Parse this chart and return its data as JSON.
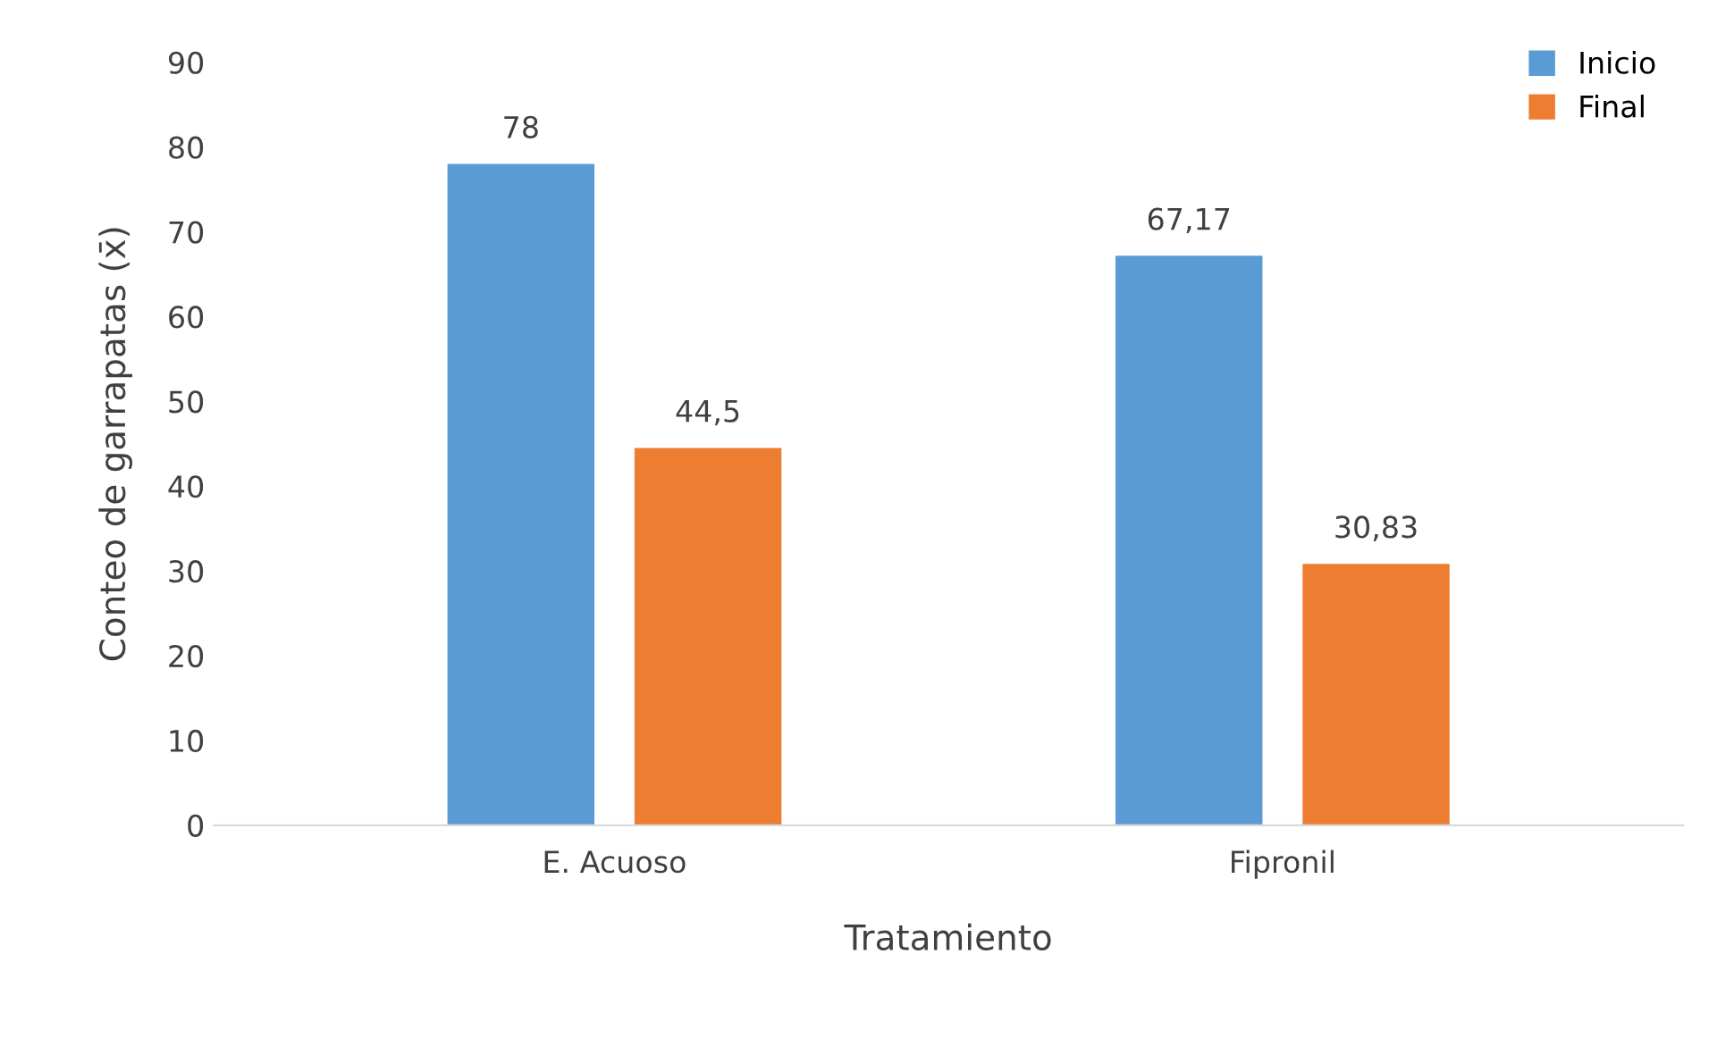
{
  "chart_data": {
    "type": "bar",
    "xlabel": "Tratamiento",
    "ylabel": "Conteo de garrapatas (x̄)",
    "categories": [
      "E. Acuoso",
      "Fipronil"
    ],
    "series": [
      {
        "name": "Inicio",
        "color": "#5b9bd5",
        "values": [
          78,
          67.17
        ],
        "value_labels": [
          "78",
          "67,17"
        ]
      },
      {
        "name": "Final",
        "color": "#ed7d31",
        "values": [
          44.5,
          30.83
        ],
        "value_labels": [
          "44,5",
          "30,83"
        ]
      }
    ],
    "ylim": [
      0,
      90
    ],
    "yticks": [
      0,
      10,
      20,
      30,
      40,
      50,
      60,
      70,
      80,
      90
    ],
    "grid": false,
    "legend": "top right"
  }
}
